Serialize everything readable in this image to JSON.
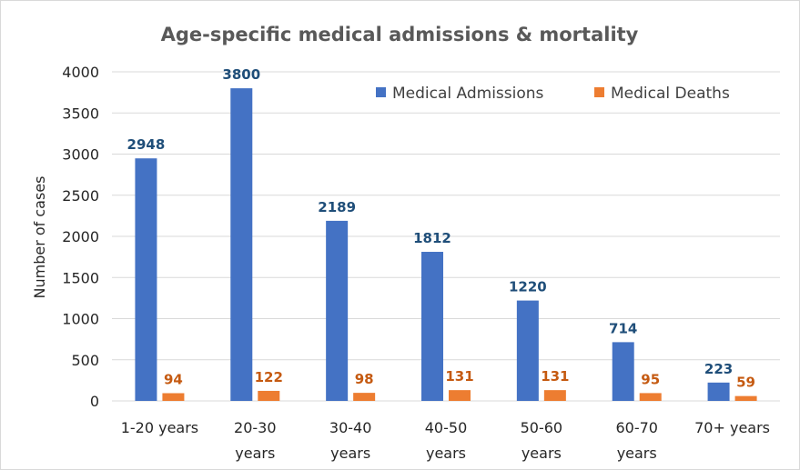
{
  "chart_data": {
    "type": "bar",
    "title": "Age-specific medical admissions & mortality",
    "ylabel": "Number of cases",
    "xlabel": "",
    "ylim": [
      0,
      4000
    ],
    "yticks": [
      0,
      500,
      1000,
      1500,
      2000,
      2500,
      3000,
      3500,
      4000
    ],
    "grid": true,
    "legend_position": "top-right",
    "categories": [
      "1-20 years",
      "20-30 years",
      "30-40 years",
      "40-50 years",
      "50-60 years",
      "60-70 years",
      "70+ years"
    ],
    "series": [
      {
        "name": "Medical Admissions",
        "color": "#4472c4",
        "label_color": "#1f4e79",
        "values": [
          2948,
          3800,
          2189,
          1812,
          1220,
          714,
          223
        ]
      },
      {
        "name": "Medical Deaths",
        "color": "#ed7d31",
        "label_color": "#c55a11",
        "values": [
          94,
          122,
          98,
          131,
          131,
          95,
          59
        ]
      }
    ]
  }
}
